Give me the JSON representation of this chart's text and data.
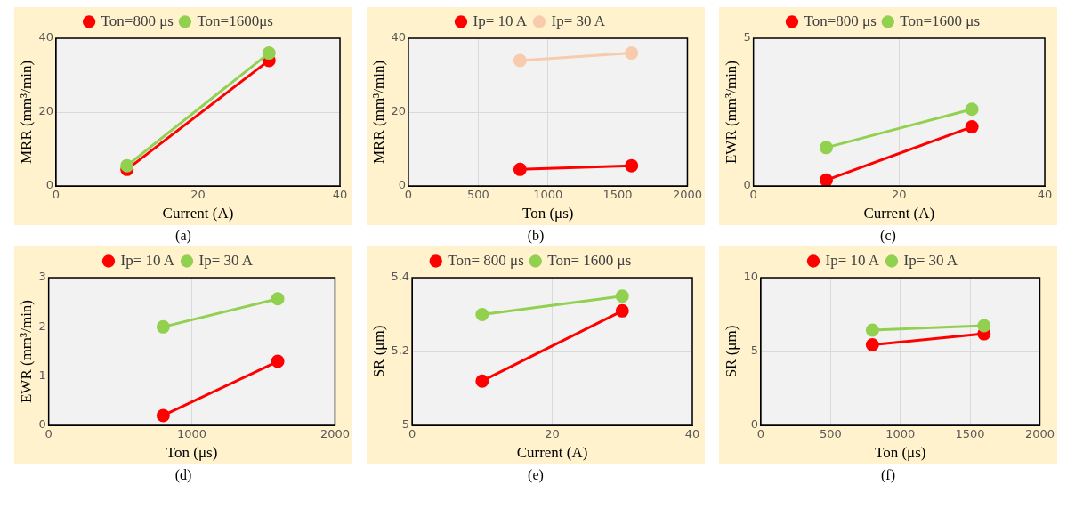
{
  "chart_data": [
    {
      "type": "line",
      "xlabel": "Current (A)",
      "ylabel": "MRR (mm³/min)",
      "x": [
        10,
        30
      ],
      "xlim": [
        0,
        40
      ],
      "xticks": [
        0,
        20,
        40
      ],
      "ylim": [
        0,
        40
      ],
      "yticks": [
        0,
        20,
        40
      ],
      "grid": true,
      "legend": "top",
      "marker": "circle",
      "line_style": "solid",
      "annotations": [
        "(a)"
      ],
      "series": [
        {
          "name": "Ton=800 μs",
          "color": "#ff0000",
          "values": [
            4.5,
            34
          ]
        },
        {
          "name": "Ton=1600μs",
          "color": "#92d050",
          "values": [
            5.5,
            36
          ]
        }
      ]
    },
    {
      "type": "line",
      "xlabel": "Ton (μs)",
      "ylabel": "MRR (mm³/min)",
      "x": [
        800,
        1600
      ],
      "xlim": [
        0,
        2000
      ],
      "xticks": [
        0,
        500,
        1000,
        1500,
        2000
      ],
      "ylim": [
        0,
        40
      ],
      "yticks": [
        0,
        20,
        40
      ],
      "grid": true,
      "legend": "top",
      "marker": "circle",
      "line_style": "solid",
      "annotations": [
        "(b)"
      ],
      "series": [
        {
          "name": "Ip= 10 A",
          "color": "#ff0000",
          "values": [
            4.5,
            5.5
          ]
        },
        {
          "name": "Ip= 30 A",
          "color": "#f8cbad",
          "values": [
            34,
            36
          ]
        }
      ]
    },
    {
      "type": "line",
      "xlabel": "Current (A)",
      "ylabel": "EWR (mm³/min)",
      "x": [
        10,
        30
      ],
      "xlim": [
        0,
        40
      ],
      "xticks": [
        0,
        20,
        40
      ],
      "ylim": [
        0,
        5
      ],
      "yticks": [
        0,
        5
      ],
      "grid": "x",
      "legend": "top",
      "marker": "circle",
      "line_style": "solid",
      "annotations": [
        "(c)"
      ],
      "series": [
        {
          "name": "Ton=800 μs",
          "color": "#ff0000",
          "values": [
            0.2,
            2.0
          ]
        },
        {
          "name": "Ton=1600 μs",
          "color": "#92d050",
          "values": [
            1.3,
            2.6
          ]
        }
      ]
    },
    {
      "type": "line",
      "xlabel": "Ton (μs)",
      "ylabel": "EWR (mm³/min)",
      "x": [
        800,
        1600
      ],
      "xlim": [
        0,
        2000
      ],
      "xticks": [
        0,
        1000,
        2000
      ],
      "ylim": [
        0,
        3
      ],
      "yticks": [
        0,
        1,
        2,
        3
      ],
      "grid": true,
      "legend": "top",
      "marker": "circle",
      "line_style": "solid",
      "annotations": [
        "(d)"
      ],
      "series": [
        {
          "name": "Ip= 10 A",
          "color": "#ff0000",
          "values": [
            0.2,
            1.3
          ]
        },
        {
          "name": "Ip= 30 A",
          "color": "#92d050",
          "values": [
            2.0,
            2.57
          ]
        }
      ]
    },
    {
      "type": "line",
      "xlabel": "Current (A)",
      "ylabel": "SR (μm)",
      "x": [
        10,
        30
      ],
      "xlim": [
        0,
        40
      ],
      "xticks": [
        0,
        20,
        40
      ],
      "ylim": [
        5,
        5.4
      ],
      "yticks": [
        5,
        5.2,
        5.4
      ],
      "grid": true,
      "legend": "top",
      "marker": "circle",
      "line_style": "solid",
      "annotations": [
        "(e)"
      ],
      "series": [
        {
          "name": "Ton= 800 μs",
          "color": "#ff0000",
          "values": [
            5.12,
            5.31
          ]
        },
        {
          "name": "Ton= 1600 μs",
          "color": "#92d050",
          "values": [
            5.3,
            5.35
          ]
        }
      ]
    },
    {
      "type": "line",
      "xlabel": "Ton (μs)",
      "ylabel": "SR (μm)",
      "x": [
        800,
        1600
      ],
      "xlim": [
        0,
        2000
      ],
      "xticks": [
        0,
        500,
        1000,
        1500,
        2000
      ],
      "ylim": [
        0,
        10
      ],
      "yticks": [
        0,
        5,
        10
      ],
      "grid": true,
      "legend": "top",
      "marker": "circle",
      "line_style": "solid",
      "annotations": [
        "(f)"
      ],
      "series": [
        {
          "name": "Ip= 10 A",
          "color": "#ff0000",
          "values": [
            5.45,
            6.2
          ]
        },
        {
          "name": "Ip= 30 A",
          "color": "#92d050",
          "values": [
            6.45,
            6.75
          ]
        }
      ]
    }
  ]
}
